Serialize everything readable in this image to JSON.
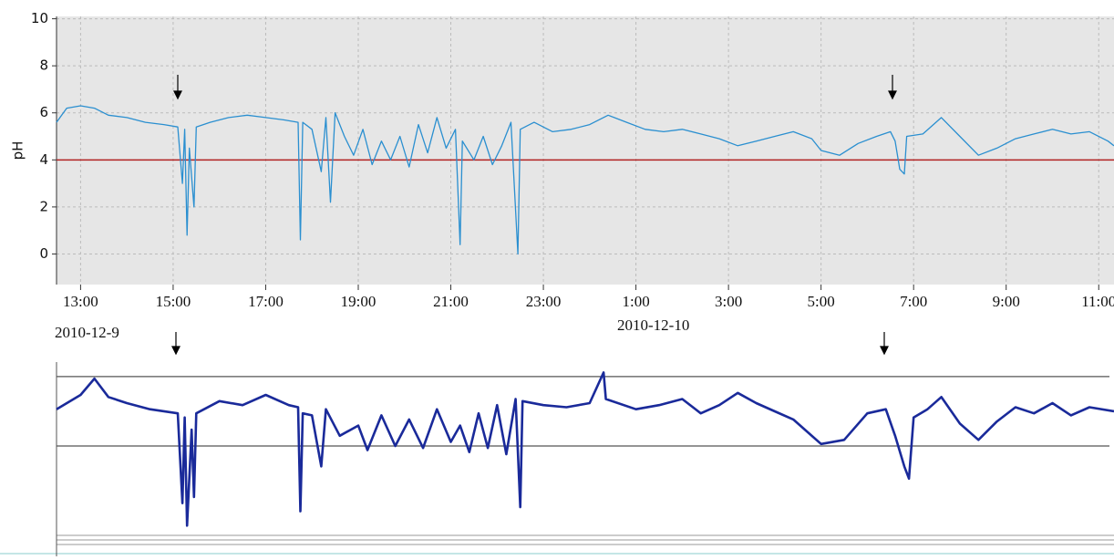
{
  "chart_data": [
    {
      "type": "line",
      "y_label": "pH",
      "xlim": [
        12.48,
        35.33
      ],
      "ylim": [
        -1.3,
        10.1
      ],
      "xticks": [
        {
          "value": 13,
          "label": "13:00"
        },
        {
          "value": 15,
          "label": "15:00"
        },
        {
          "value": 17,
          "label": "17:00"
        },
        {
          "value": 19,
          "label": "19:00"
        },
        {
          "value": 21,
          "label": "21:00"
        },
        {
          "value": 23,
          "label": "23:00"
        },
        {
          "value": 25,
          "label": "1:00"
        },
        {
          "value": 27,
          "label": "3:00"
        },
        {
          "value": 29,
          "label": "5:00"
        },
        {
          "value": 31,
          "label": "7:00"
        },
        {
          "value": 33,
          "label": "9:00"
        },
        {
          "value": 35,
          "label": "11:00"
        }
      ],
      "yticks": [
        0,
        2,
        4,
        6,
        8,
        10
      ],
      "grid": true,
      "threshold": 4,
      "threshold_color": "#b22222",
      "dates": [
        "2010-12-9",
        "2010-12-10"
      ],
      "series": [
        {
          "color": "#2a8fd0",
          "x": [
            12.48,
            12.7,
            13.0,
            13.3,
            13.6,
            14.0,
            14.4,
            14.8,
            15.1,
            15.2,
            15.25,
            15.3,
            15.35,
            15.45,
            15.5,
            15.8,
            16.2,
            16.6,
            17.0,
            17.4,
            17.7,
            17.75,
            17.8,
            18.0,
            18.2,
            18.3,
            18.4,
            18.5,
            18.7,
            18.9,
            19.1,
            19.3,
            19.5,
            19.7,
            19.9,
            20.1,
            20.3,
            20.5,
            20.7,
            20.9,
            21.1,
            21.2,
            21.25,
            21.5,
            21.7,
            21.9,
            22.1,
            22.3,
            22.45,
            22.5,
            22.8,
            23.2,
            23.6,
            24.0,
            24.4,
            24.8,
            25.2,
            25.6,
            26.0,
            26.4,
            26.8,
            27.2,
            27.6,
            28.0,
            28.4,
            28.8,
            29.0,
            29.4,
            29.8,
            30.2,
            30.5,
            30.6,
            30.7,
            30.8,
            30.85,
            31.2,
            31.6,
            32.0,
            32.4,
            32.8,
            33.2,
            33.6,
            34.0,
            34.4,
            34.8,
            35.2,
            35.33
          ],
          "values": [
            5.6,
            6.2,
            6.3,
            6.2,
            5.9,
            5.8,
            5.6,
            5.5,
            5.4,
            3.0,
            5.3,
            0.8,
            4.5,
            2.0,
            5.4,
            5.6,
            5.8,
            5.9,
            5.8,
            5.7,
            5.6,
            0.6,
            5.6,
            5.3,
            3.5,
            5.8,
            2.2,
            6.0,
            5.0,
            4.2,
            5.3,
            3.8,
            4.8,
            4.0,
            5.0,
            3.7,
            5.5,
            4.3,
            5.8,
            4.5,
            5.3,
            0.4,
            4.8,
            4.0,
            5.0,
            3.8,
            4.6,
            5.6,
            0.0,
            5.3,
            5.6,
            5.2,
            5.3,
            5.5,
            5.9,
            5.6,
            5.3,
            5.2,
            5.3,
            5.1,
            4.9,
            4.6,
            4.8,
            5.0,
            5.2,
            4.9,
            4.4,
            4.2,
            4.7,
            5.0,
            5.2,
            4.8,
            3.6,
            3.4,
            5.0,
            5.1,
            5.8,
            5.0,
            4.2,
            4.5,
            4.9,
            5.1,
            5.3,
            5.1,
            5.2,
            4.8,
            4.6
          ]
        }
      ]
    },
    {
      "type": "line",
      "xlim": [
        12.48,
        35.33
      ],
      "ylim": [
        -0.2,
        8.2
      ],
      "reference_lines": [
        7.4,
        4
      ],
      "series": [
        {
          "color": "#1a2a9a",
          "x": [
            12.48,
            13,
            13.3,
            13.6,
            14,
            14.5,
            15.1,
            15.2,
            15.25,
            15.3,
            15.4,
            15.45,
            15.5,
            16,
            16.5,
            17,
            17.5,
            17.7,
            17.75,
            17.8,
            18,
            18.2,
            18.3,
            18.6,
            19,
            19.2,
            19.5,
            19.8,
            20.1,
            20.4,
            20.7,
            21.0,
            21.2,
            21.4,
            21.6,
            21.8,
            22,
            22.2,
            22.4,
            22.5,
            22.55,
            23,
            23.5,
            24,
            24.3,
            24.35,
            25,
            25.5,
            26,
            26.4,
            26.8,
            27.2,
            27.6,
            28,
            28.4,
            29,
            29.5,
            30,
            30.4,
            30.6,
            30.8,
            30.9,
            31,
            31.3,
            31.6,
            32,
            32.4,
            32.8,
            33.2,
            33.6,
            34,
            34.4,
            34.8,
            35.33
          ],
          "values": [
            5.8,
            6.5,
            7.3,
            6.4,
            6.1,
            5.8,
            5.6,
            1.2,
            5.4,
            0.1,
            4.8,
            1.5,
            5.6,
            6.2,
            6.0,
            6.5,
            6.0,
            5.9,
            0.8,
            5.6,
            5.5,
            3.0,
            5.8,
            4.5,
            5.0,
            3.8,
            5.5,
            4.0,
            5.3,
            3.9,
            5.8,
            4.2,
            5.0,
            3.7,
            5.6,
            3.9,
            6.0,
            3.6,
            6.3,
            1.0,
            6.2,
            6.0,
            5.9,
            6.1,
            7.6,
            6.3,
            5.8,
            6.0,
            6.3,
            5.6,
            6.0,
            6.6,
            6.1,
            5.7,
            5.3,
            4.1,
            4.3,
            5.6,
            5.8,
            4.5,
            3.0,
            2.4,
            5.4,
            5.8,
            6.4,
            5.1,
            4.3,
            5.2,
            5.9,
            5.6,
            6.1,
            5.5,
            5.9,
            5.7
          ]
        }
      ]
    }
  ]
}
